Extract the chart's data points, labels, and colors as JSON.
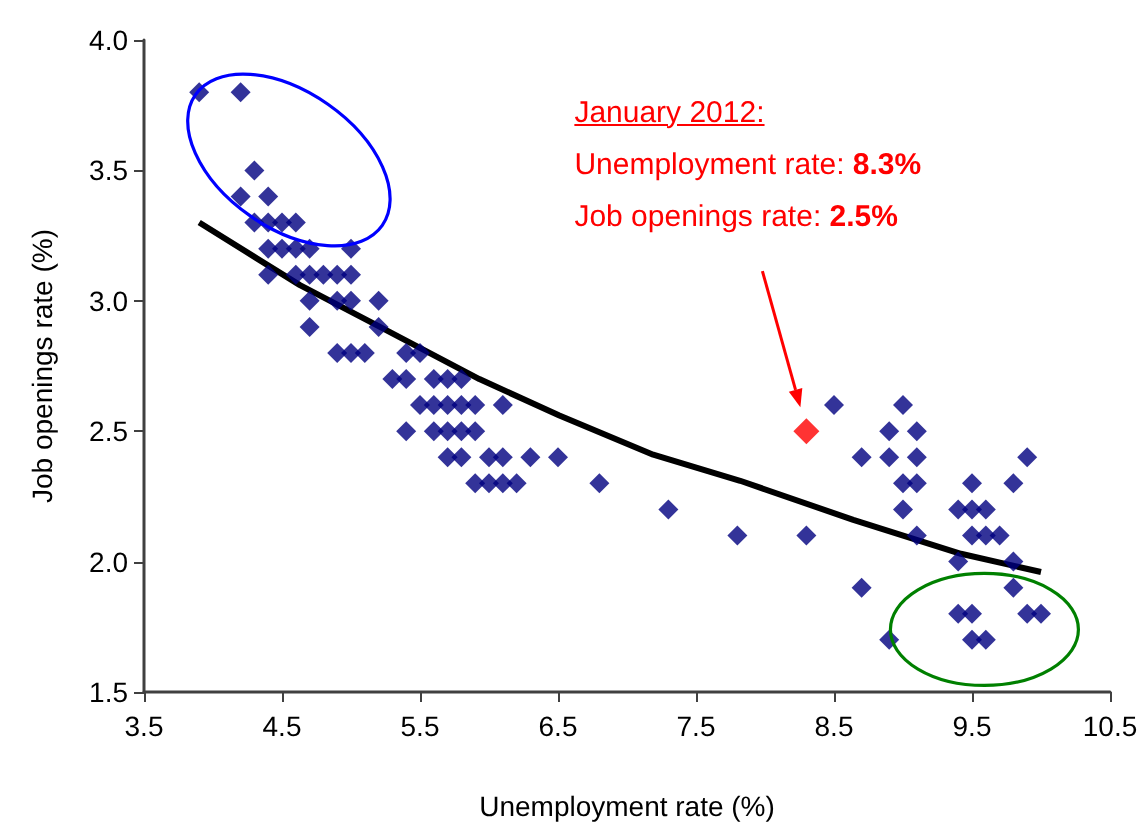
{
  "chart_data": {
    "type": "scatter",
    "xlabel": "Unemployment rate (%)",
    "ylabel": "Job openings rate (%)",
    "annotations": [
      "January 2012:",
      "Unemployment rate: 8.3%",
      "Job openings rate: 2.5%"
    ],
    "series": [
      {
        "color": "#000080",
        "x": [
          3.9,
          4.2,
          4.3,
          4.2,
          4.4,
          4.3,
          4.4,
          4.5,
          4.6,
          4.4,
          4.5,
          4.6,
          4.7,
          5.0,
          4.4,
          4.6,
          4.7,
          4.8,
          4.9,
          5.0,
          4.7,
          4.9,
          5.0,
          5.2,
          4.7,
          5.2,
          4.9,
          5.0,
          5.1,
          5.4,
          5.5,
          5.3,
          5.4,
          5.6,
          5.7,
          5.8,
          5.5,
          5.6,
          5.7,
          5.8,
          5.9,
          6.1,
          5.4,
          5.6,
          5.7,
          5.8,
          5.9,
          5.7,
          5.8,
          6.0,
          6.1,
          6.3,
          6.5,
          5.9,
          6.0,
          6.1,
          6.2,
          6.8,
          7.3,
          7.8,
          8.3,
          8.5,
          9.0,
          8.9,
          9.1,
          8.7,
          8.9,
          9.1,
          9.9,
          9.0,
          9.1,
          9.5,
          9.8,
          9.0,
          9.4,
          9.5,
          9.6,
          9.1,
          9.5,
          9.6,
          9.7,
          9.4,
          9.8,
          8.7,
          9.8,
          9.4,
          9.5,
          9.9,
          10.0,
          8.9,
          9.5,
          9.6
        ],
        "values": [
          3.8,
          3.8,
          3.5,
          3.4,
          3.4,
          3.3,
          3.3,
          3.3,
          3.3,
          3.2,
          3.2,
          3.2,
          3.2,
          3.2,
          3.1,
          3.1,
          3.1,
          3.1,
          3.1,
          3.1,
          3.0,
          3.0,
          3.0,
          3.0,
          2.9,
          2.9,
          2.8,
          2.8,
          2.8,
          2.8,
          2.8,
          2.7,
          2.7,
          2.7,
          2.7,
          2.7,
          2.6,
          2.6,
          2.6,
          2.6,
          2.6,
          2.6,
          2.5,
          2.5,
          2.5,
          2.5,
          2.5,
          2.4,
          2.4,
          2.4,
          2.4,
          2.4,
          2.4,
          2.3,
          2.3,
          2.3,
          2.3,
          2.3,
          2.2,
          2.1,
          2.1,
          2.6,
          2.6,
          2.5,
          2.5,
          2.4,
          2.4,
          2.4,
          2.4,
          2.3,
          2.3,
          2.3,
          2.3,
          2.2,
          2.2,
          2.2,
          2.2,
          2.1,
          2.1,
          2.1,
          2.1,
          2.0,
          2.0,
          1.9,
          1.9,
          1.8,
          1.8,
          1.8,
          1.8,
          1.7,
          1.7,
          1.7
        ]
      },
      {
        "color": "#ff0000",
        "x": [
          8.3
        ],
        "values": [
          2.5
        ]
      },
      {
        "type": "line",
        "color": "#000000",
        "marker": "none",
        "x": [
          3.9,
          4.63,
          5.21,
          5.93,
          6.51,
          7.19,
          7.82,
          8.64,
          9.42,
          10.0
        ],
        "values": [
          3.3,
          3.06,
          2.9,
          2.7,
          2.56,
          2.41,
          2.31,
          2.16,
          2.03,
          1.96
        ]
      }
    ],
    "xlim": [
      3.5,
      10.5
    ],
    "xticks": [
      3.5,
      4.5,
      5.5,
      6.5,
      7.5,
      8.5,
      9.5,
      10.5
    ],
    "ylim": [
      1.5,
      4.0
    ],
    "yticks": [
      1.5,
      {
        "value": 2,
        "label": "2.0"
      },
      2.5,
      {
        "value": 3,
        "label": "3.0"
      },
      3.5,
      {
        "value": 4,
        "label": "4.0"
      }
    ],
    "grid": false,
    "marker": "diamond"
  }
}
